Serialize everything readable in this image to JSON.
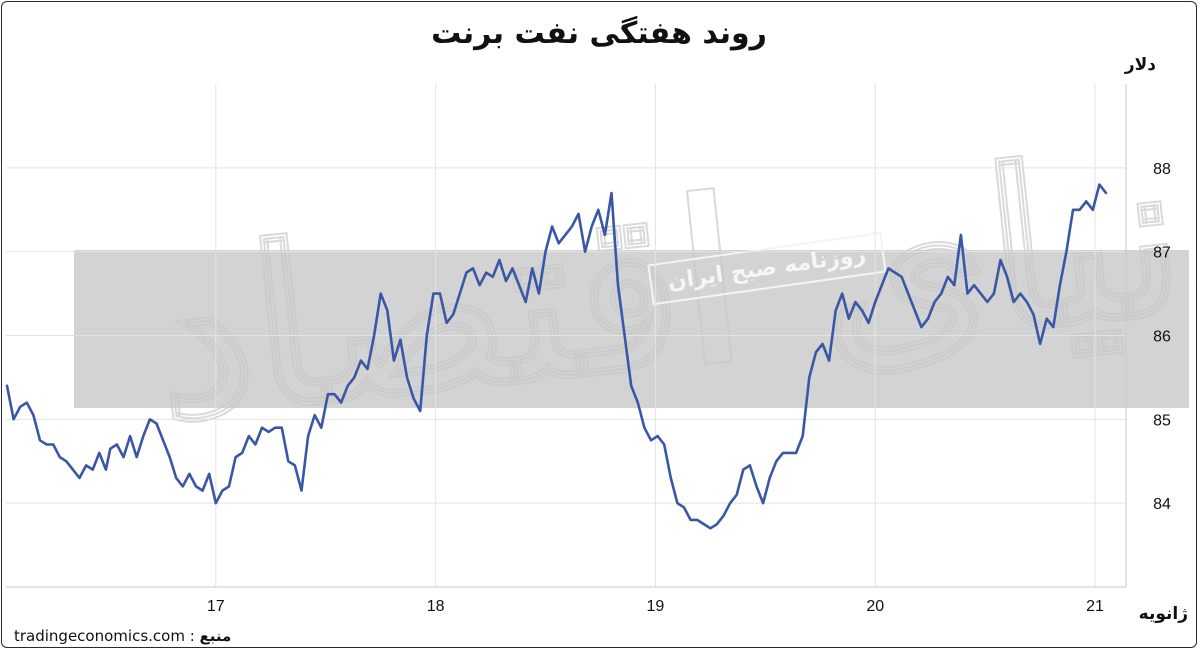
{
  "chart_data": {
    "type": "line",
    "title": "روند هفتگی نفت برنت",
    "ylabel": "دلار",
    "xlabel": "ژانویه",
    "source_label": "منبع",
    "source_sep": " : ",
    "source": "tradingeconomics.com",
    "watermark_stamp": "روزنامه صبح ایران",
    "x_ticks": [
      "17",
      "18",
      "19",
      "20",
      "21"
    ],
    "y_ticks": [
      84,
      85,
      86,
      87,
      88
    ],
    "xlim": [
      16.05,
      21.1
    ],
    "ylim": [
      83.0,
      89.0
    ],
    "grid": true,
    "line_color": "#3a57a5",
    "series": [
      {
        "values": [
          [
            16.05,
            85.4
          ],
          [
            16.08,
            85.0
          ],
          [
            16.11,
            85.15
          ],
          [
            16.14,
            85.2
          ],
          [
            16.17,
            85.05
          ],
          [
            16.2,
            84.75
          ],
          [
            16.23,
            84.7
          ],
          [
            16.26,
            84.7
          ],
          [
            16.29,
            84.55
          ],
          [
            16.32,
            84.5
          ],
          [
            16.35,
            84.4
          ],
          [
            16.38,
            84.3
          ],
          [
            16.41,
            84.45
          ],
          [
            16.44,
            84.4
          ],
          [
            16.47,
            84.6
          ],
          [
            16.5,
            84.4
          ],
          [
            16.52,
            84.65
          ],
          [
            16.55,
            84.7
          ],
          [
            16.58,
            84.55
          ],
          [
            16.61,
            84.8
          ],
          [
            16.64,
            84.55
          ],
          [
            16.67,
            84.8
          ],
          [
            16.7,
            85.0
          ],
          [
            16.73,
            84.95
          ],
          [
            16.76,
            84.75
          ],
          [
            16.79,
            84.55
          ],
          [
            16.82,
            84.3
          ],
          [
            16.85,
            84.2
          ],
          [
            16.88,
            84.35
          ],
          [
            16.91,
            84.2
          ],
          [
            16.94,
            84.15
          ],
          [
            16.97,
            84.35
          ],
          [
            17.0,
            84.0
          ],
          [
            17.03,
            84.15
          ],
          [
            17.06,
            84.2
          ],
          [
            17.09,
            84.55
          ],
          [
            17.12,
            84.6
          ],
          [
            17.15,
            84.8
          ],
          [
            17.18,
            84.7
          ],
          [
            17.21,
            84.9
          ],
          [
            17.24,
            84.85
          ],
          [
            17.27,
            84.9
          ],
          [
            17.3,
            84.9
          ],
          [
            17.33,
            84.5
          ],
          [
            17.36,
            84.45
          ],
          [
            17.39,
            84.15
          ],
          [
            17.42,
            84.8
          ],
          [
            17.45,
            85.05
          ],
          [
            17.48,
            84.9
          ],
          [
            17.51,
            85.3
          ],
          [
            17.54,
            85.3
          ],
          [
            17.57,
            85.2
          ],
          [
            17.6,
            85.4
          ],
          [
            17.63,
            85.5
          ],
          [
            17.66,
            85.7
          ],
          [
            17.69,
            85.6
          ],
          [
            17.72,
            86.0
          ],
          [
            17.75,
            86.5
          ],
          [
            17.78,
            86.3
          ],
          [
            17.81,
            85.7
          ],
          [
            17.84,
            85.95
          ],
          [
            17.87,
            85.5
          ],
          [
            17.9,
            85.25
          ],
          [
            17.93,
            85.1
          ],
          [
            17.96,
            86.0
          ],
          [
            17.99,
            86.5
          ],
          [
            18.02,
            86.5
          ],
          [
            18.05,
            86.15
          ],
          [
            18.08,
            86.25
          ],
          [
            18.11,
            86.5
          ],
          [
            18.14,
            86.75
          ],
          [
            18.17,
            86.8
          ],
          [
            18.2,
            86.6
          ],
          [
            18.23,
            86.75
          ],
          [
            18.26,
            86.7
          ],
          [
            18.29,
            86.9
          ],
          [
            18.32,
            86.65
          ],
          [
            18.35,
            86.8
          ],
          [
            18.38,
            86.6
          ],
          [
            18.41,
            86.4
          ],
          [
            18.44,
            86.8
          ],
          [
            18.47,
            86.5
          ],
          [
            18.5,
            87.0
          ],
          [
            18.53,
            87.3
          ],
          [
            18.56,
            87.1
          ],
          [
            18.59,
            87.2
          ],
          [
            18.62,
            87.3
          ],
          [
            18.65,
            87.45
          ],
          [
            18.68,
            87.0
          ],
          [
            18.71,
            87.3
          ],
          [
            18.74,
            87.5
          ],
          [
            18.77,
            87.2
          ],
          [
            18.8,
            87.7
          ],
          [
            18.83,
            86.6
          ],
          [
            18.86,
            86.0
          ],
          [
            18.89,
            85.4
          ],
          [
            18.92,
            85.2
          ],
          [
            18.95,
            84.9
          ],
          [
            18.98,
            84.75
          ],
          [
            19.01,
            84.8
          ],
          [
            19.04,
            84.7
          ],
          [
            19.07,
            84.3
          ],
          [
            19.1,
            84.0
          ],
          [
            19.13,
            83.95
          ],
          [
            19.16,
            83.8
          ],
          [
            19.19,
            83.8
          ],
          [
            19.22,
            83.75
          ],
          [
            19.25,
            83.7
          ],
          [
            19.28,
            83.75
          ],
          [
            19.31,
            83.85
          ],
          [
            19.34,
            84.0
          ],
          [
            19.37,
            84.1
          ],
          [
            19.4,
            84.4
          ],
          [
            19.43,
            84.45
          ],
          [
            19.46,
            84.2
          ],
          [
            19.49,
            84.0
          ],
          [
            19.52,
            84.3
          ],
          [
            19.55,
            84.5
          ],
          [
            19.58,
            84.6
          ],
          [
            19.61,
            84.6
          ],
          [
            19.64,
            84.6
          ],
          [
            19.67,
            84.8
          ],
          [
            19.7,
            85.5
          ],
          [
            19.73,
            85.8
          ],
          [
            19.76,
            85.9
          ],
          [
            19.79,
            85.7
          ],
          [
            19.82,
            86.3
          ],
          [
            19.85,
            86.5
          ],
          [
            19.88,
            86.2
          ],
          [
            19.91,
            86.4
          ],
          [
            19.94,
            86.3
          ],
          [
            19.97,
            86.15
          ],
          [
            20.0,
            86.4
          ],
          [
            20.03,
            86.6
          ],
          [
            20.06,
            86.8
          ],
          [
            20.09,
            86.75
          ],
          [
            20.12,
            86.7
          ],
          [
            20.15,
            86.5
          ],
          [
            20.18,
            86.3
          ],
          [
            20.21,
            86.1
          ],
          [
            20.24,
            86.2
          ],
          [
            20.27,
            86.4
          ],
          [
            20.3,
            86.5
          ],
          [
            20.33,
            86.7
          ],
          [
            20.36,
            86.6
          ],
          [
            20.39,
            87.2
          ],
          [
            20.42,
            86.5
          ],
          [
            20.45,
            86.6
          ],
          [
            20.48,
            86.5
          ],
          [
            20.51,
            86.4
          ],
          [
            20.54,
            86.5
          ],
          [
            20.57,
            86.9
          ],
          [
            20.6,
            86.7
          ],
          [
            20.63,
            86.4
          ],
          [
            20.66,
            86.5
          ],
          [
            20.69,
            86.4
          ],
          [
            20.72,
            86.25
          ],
          [
            20.75,
            85.9
          ],
          [
            20.78,
            86.2
          ],
          [
            20.81,
            86.1
          ],
          [
            20.84,
            86.6
          ],
          [
            20.87,
            87.0
          ],
          [
            20.9,
            87.5
          ],
          [
            20.93,
            87.5
          ],
          [
            20.96,
            87.6
          ],
          [
            20.99,
            87.5
          ],
          [
            21.02,
            87.8
          ],
          [
            21.05,
            87.7
          ]
        ]
      }
    ]
  }
}
